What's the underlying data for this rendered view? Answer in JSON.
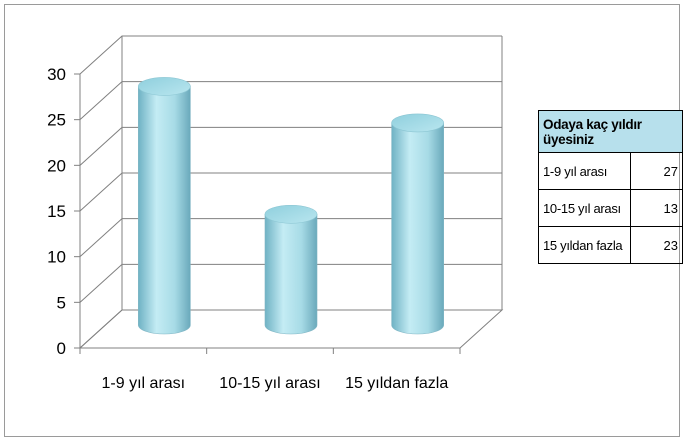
{
  "chart_data": {
    "type": "bar",
    "style": "3d-cylinder",
    "categories": [
      "1-9 yıl arası",
      "10-15 yıl arası",
      "15 yıldan fazla"
    ],
    "values": [
      27,
      13,
      23
    ],
    "ylim": [
      0,
      30
    ],
    "yticks": [
      "0",
      "5",
      "10",
      "15",
      "20",
      "25",
      "30"
    ],
    "grid": true,
    "bar_color": "#a9dde8"
  },
  "table": {
    "header": "Odaya kaç yıldır üyesiniz",
    "rows": [
      {
        "label": "1-9 yıl arası",
        "value": "27"
      },
      {
        "label": "10-15 yıl arası",
        "value": "13"
      },
      {
        "label": "15 yıldan fazla",
        "value": "23"
      }
    ]
  }
}
